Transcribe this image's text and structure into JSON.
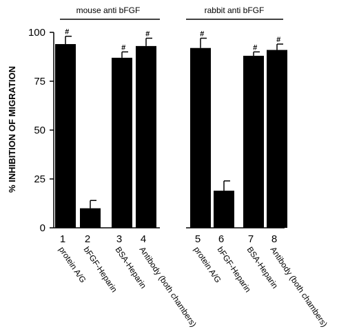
{
  "chart_data": {
    "type": "bar",
    "ylabel": "% INHIBITION OF MIGRATION",
    "ylim": [
      0,
      100
    ],
    "yticks": [
      "0",
      "25",
      "50",
      "75",
      "100"
    ],
    "groups": [
      {
        "title": "mouse anti bFGF"
      },
      {
        "title": "rabbit anti bFGF"
      }
    ],
    "numbers": [
      "1",
      "2",
      "3",
      "4",
      "5",
      "6",
      "7",
      "8"
    ],
    "categories": [
      "protein A/G",
      "bFGF-Heparin",
      "BSA-Heparin",
      "Antibody (both chambers)",
      "protein A/G",
      "bFGF-Heparin",
      "BSA-Heparin",
      "Antibody (both chambers)"
    ],
    "values": [
      94,
      10,
      87,
      93,
      92,
      19,
      88,
      91
    ],
    "errors": [
      4,
      4,
      3,
      4,
      5,
      5,
      2,
      3
    ],
    "significance": [
      "#",
      "",
      "#",
      "#",
      "#",
      "",
      "#",
      "#"
    ],
    "bar_color": "#000000",
    "grid": false
  }
}
